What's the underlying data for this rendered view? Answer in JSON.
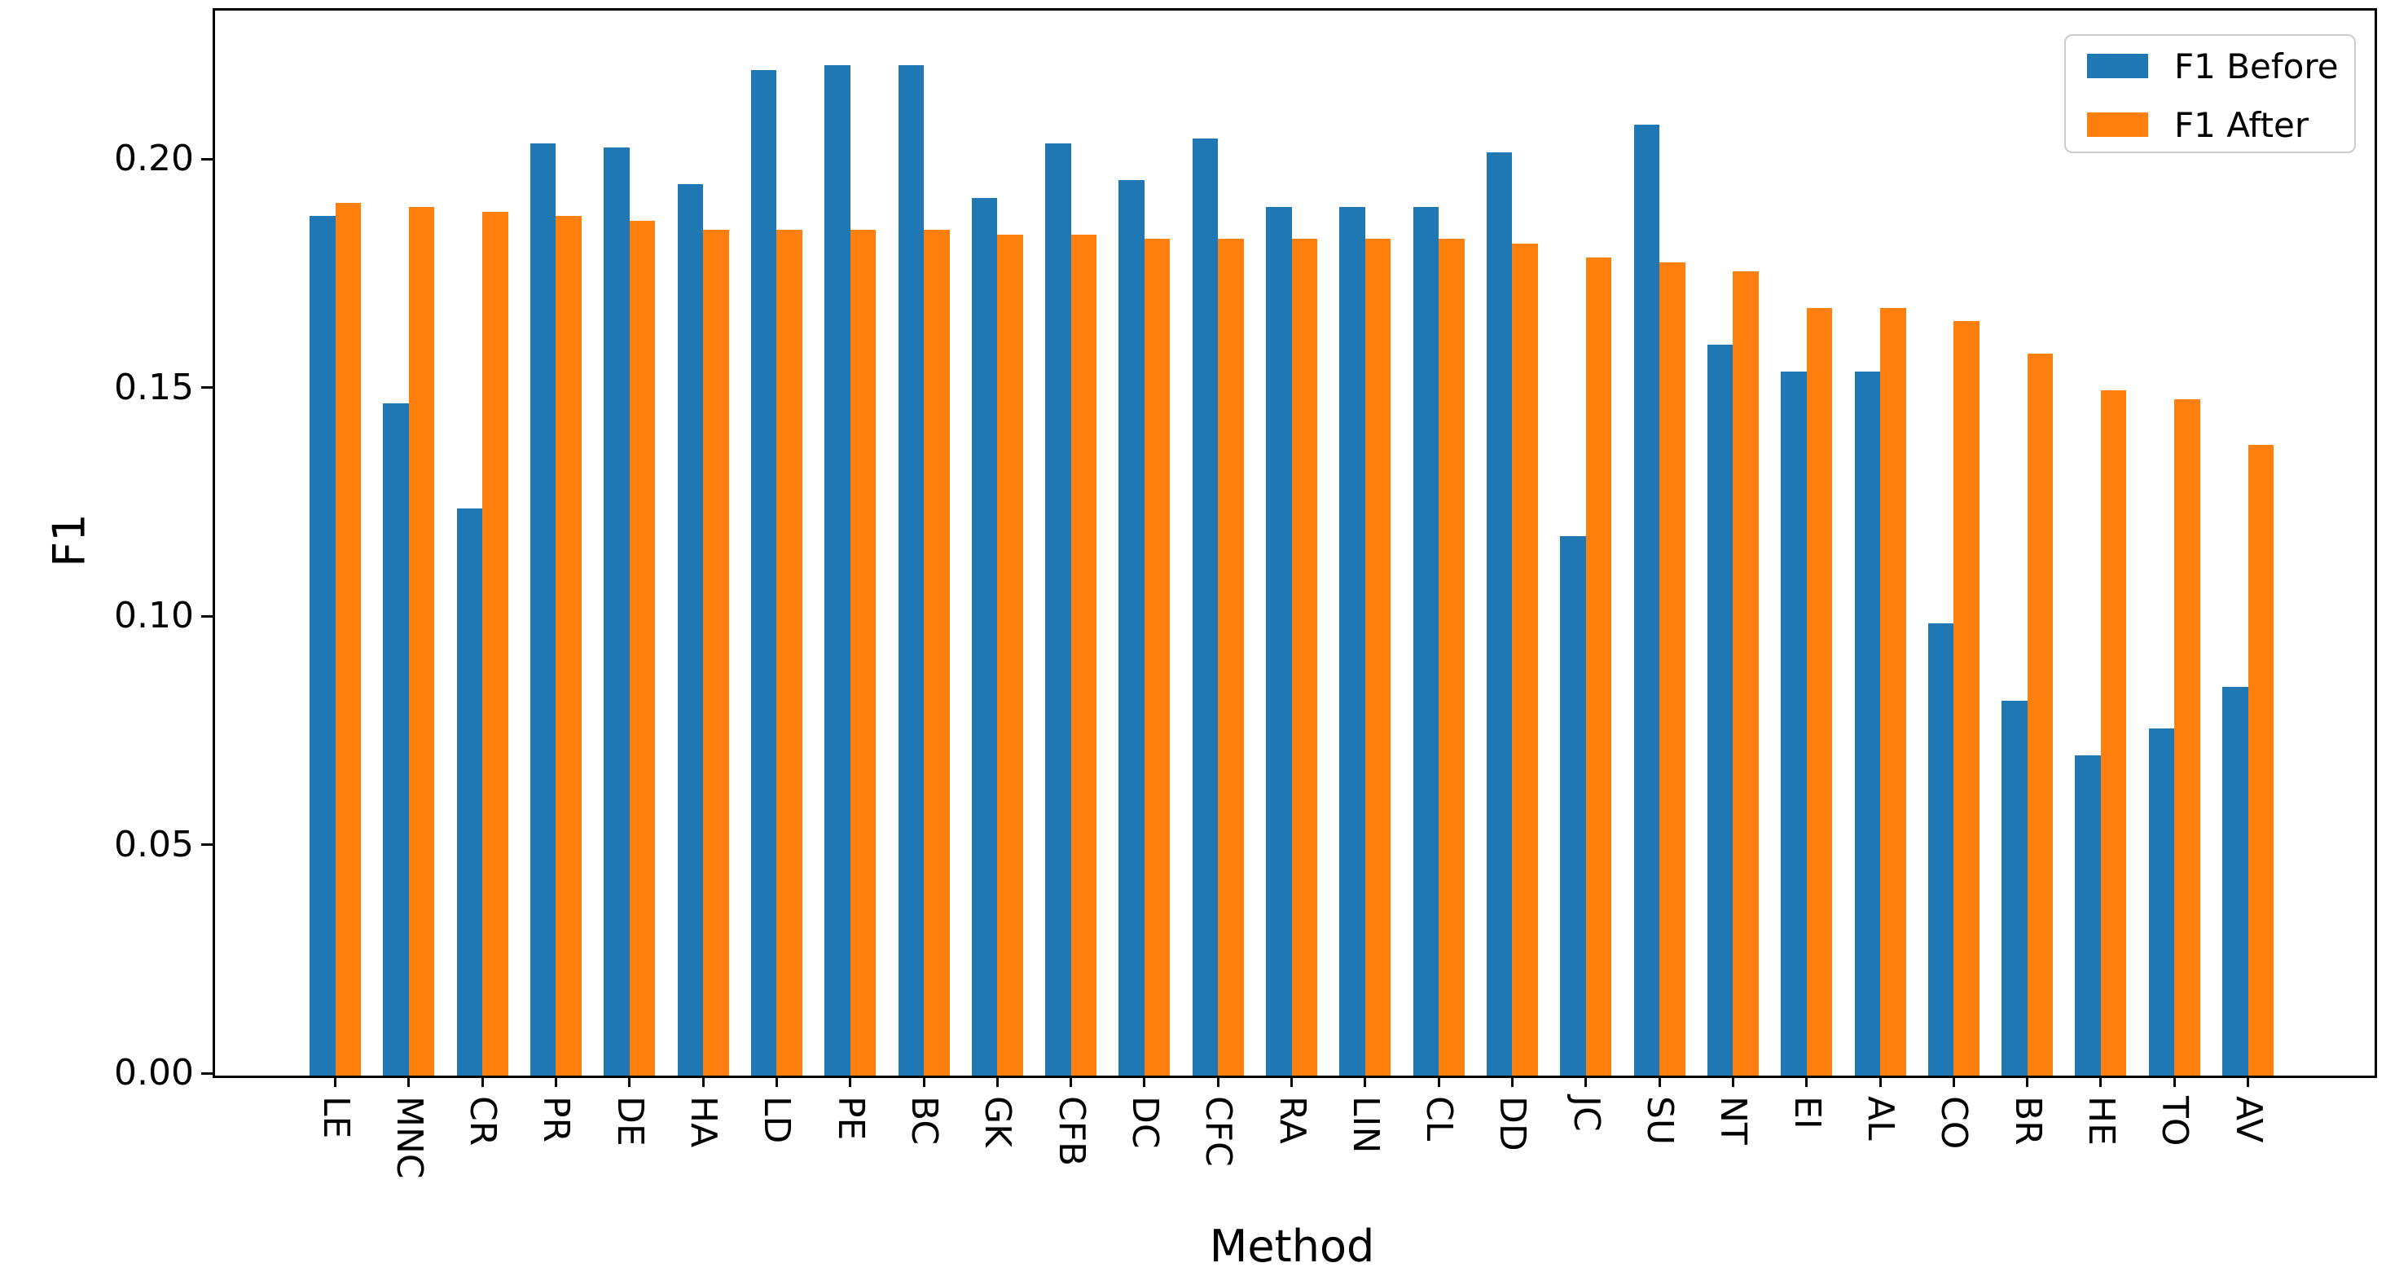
{
  "chart_data": {
    "type": "bar",
    "title": "",
    "xlabel": "Method",
    "ylabel": "F1",
    "categories": [
      "LE",
      "MNC",
      "CR",
      "PR",
      "DE",
      "HA",
      "LD",
      "PE",
      "BC",
      "GK",
      "CFB",
      "DC",
      "CFC",
      "RA",
      "LIN",
      "CL",
      "DD",
      "JC",
      "SU",
      "NT",
      "EI",
      "AL",
      "CO",
      "BR",
      "HE",
      "TO",
      "AV"
    ],
    "series": [
      {
        "name": "F1 Before",
        "color": "#1f77b4",
        "values": [
          0.188,
          0.147,
          0.124,
          0.204,
          0.203,
          0.195,
          0.22,
          0.221,
          0.221,
          0.192,
          0.204,
          0.196,
          0.205,
          0.19,
          0.19,
          0.19,
          0.202,
          0.118,
          0.208,
          0.16,
          0.154,
          0.154,
          0.099,
          0.082,
          0.07,
          0.076,
          0.085
        ]
      },
      {
        "name": "F1 After",
        "color": "#ff7f0e",
        "values": [
          0.191,
          0.19,
          0.189,
          0.188,
          0.187,
          0.185,
          0.185,
          0.185,
          0.185,
          0.184,
          0.184,
          0.183,
          0.183,
          0.183,
          0.183,
          0.183,
          0.182,
          0.179,
          0.178,
          0.176,
          0.168,
          0.168,
          0.165,
          0.158,
          0.15,
          0.148,
          0.138
        ]
      }
    ],
    "ylim": [
      0,
      0.233
    ],
    "yticks": [
      0.0,
      0.05,
      0.1,
      0.15,
      0.2
    ],
    "ytick_labels": [
      "0.00",
      "0.05",
      "0.10",
      "0.15",
      "0.20"
    ],
    "xtick_rotation": 90,
    "grid": false,
    "legend_position": "upper right",
    "background": "#ffffff",
    "spine_color": "#000000"
  },
  "legend": {
    "items": [
      {
        "label": "F1 Before",
        "color": "#1f77b4"
      },
      {
        "label": "F1 After",
        "color": "#ff7f0e"
      }
    ]
  }
}
